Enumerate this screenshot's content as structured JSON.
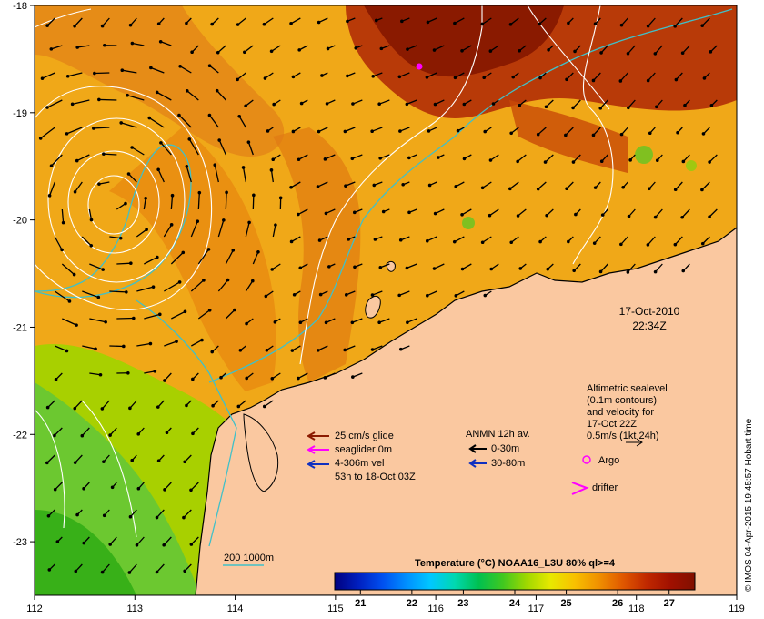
{
  "map": {
    "timestamp": {
      "date": "17-Oct-2010",
      "time": "22:34Z"
    },
    "axes": {
      "lon_ticks": [
        "112",
        "113",
        "114",
        "115",
        "116",
        "117",
        "118",
        "119"
      ],
      "lat_ticks": [
        "-18",
        "-19",
        "-20",
        "-21",
        "-22",
        "-23"
      ],
      "lon_range": [
        112,
        119
      ],
      "lat_range": [
        -18,
        -23.5
      ]
    },
    "altimetry_note": [
      "Altimetric sealevel",
      "(0.1m contours)",
      "and velocity for",
      "17-Oct 22Z",
      "0.5m/s (1kt 24h)"
    ],
    "glider_legend": {
      "items": [
        {
          "label": "25 cm/s glide",
          "color": "#8b1a00"
        },
        {
          "label": "seaglider 0m",
          "color": "#ff00ff"
        },
        {
          "label": "4-306m vel",
          "color": null
        },
        {
          "label": "53h to 18-Oct 03Z",
          "color": "#1030c0"
        }
      ]
    },
    "anmn_legend": {
      "title": "ANMN 12h av.",
      "items": [
        {
          "label": "0-30m",
          "color": "#000000"
        },
        {
          "label": "30-80m",
          "color": "#1030c0"
        }
      ]
    },
    "markers": {
      "argo_label": "Argo",
      "argo_color": "#ff00ff",
      "drifter_label": "drifter",
      "drifter_color": "#ff00ff"
    },
    "bathymetry_label": "200  1000m",
    "colorbar": {
      "title": "Temperature (°C) NOAA16_L3U 80% ql>=4",
      "ticks": [
        "21",
        "22",
        "23",
        "24",
        "25",
        "26",
        "27"
      ],
      "range": [
        20.5,
        27.5
      ],
      "colors": [
        "#000080",
        "#0020c0",
        "#0050f0",
        "#0090ff",
        "#00c8ff",
        "#00d8b0",
        "#00c050",
        "#40c820",
        "#a0d800",
        "#e8e800",
        "#f8c000",
        "#f09000",
        "#e05800",
        "#c02800",
        "#a01000",
        "#801000"
      ]
    },
    "credit": "© IMOS 04-Apr-2015 19:45:57 Hobart time",
    "colors": {
      "land": "#fac8a0",
      "cold_water": "#48c020",
      "mid_water": "#f0b000",
      "warm_water": "#d86000",
      "hot_water": "#8a1800",
      "isobath": "#40c0c8",
      "contour": "#ffffff"
    }
  }
}
